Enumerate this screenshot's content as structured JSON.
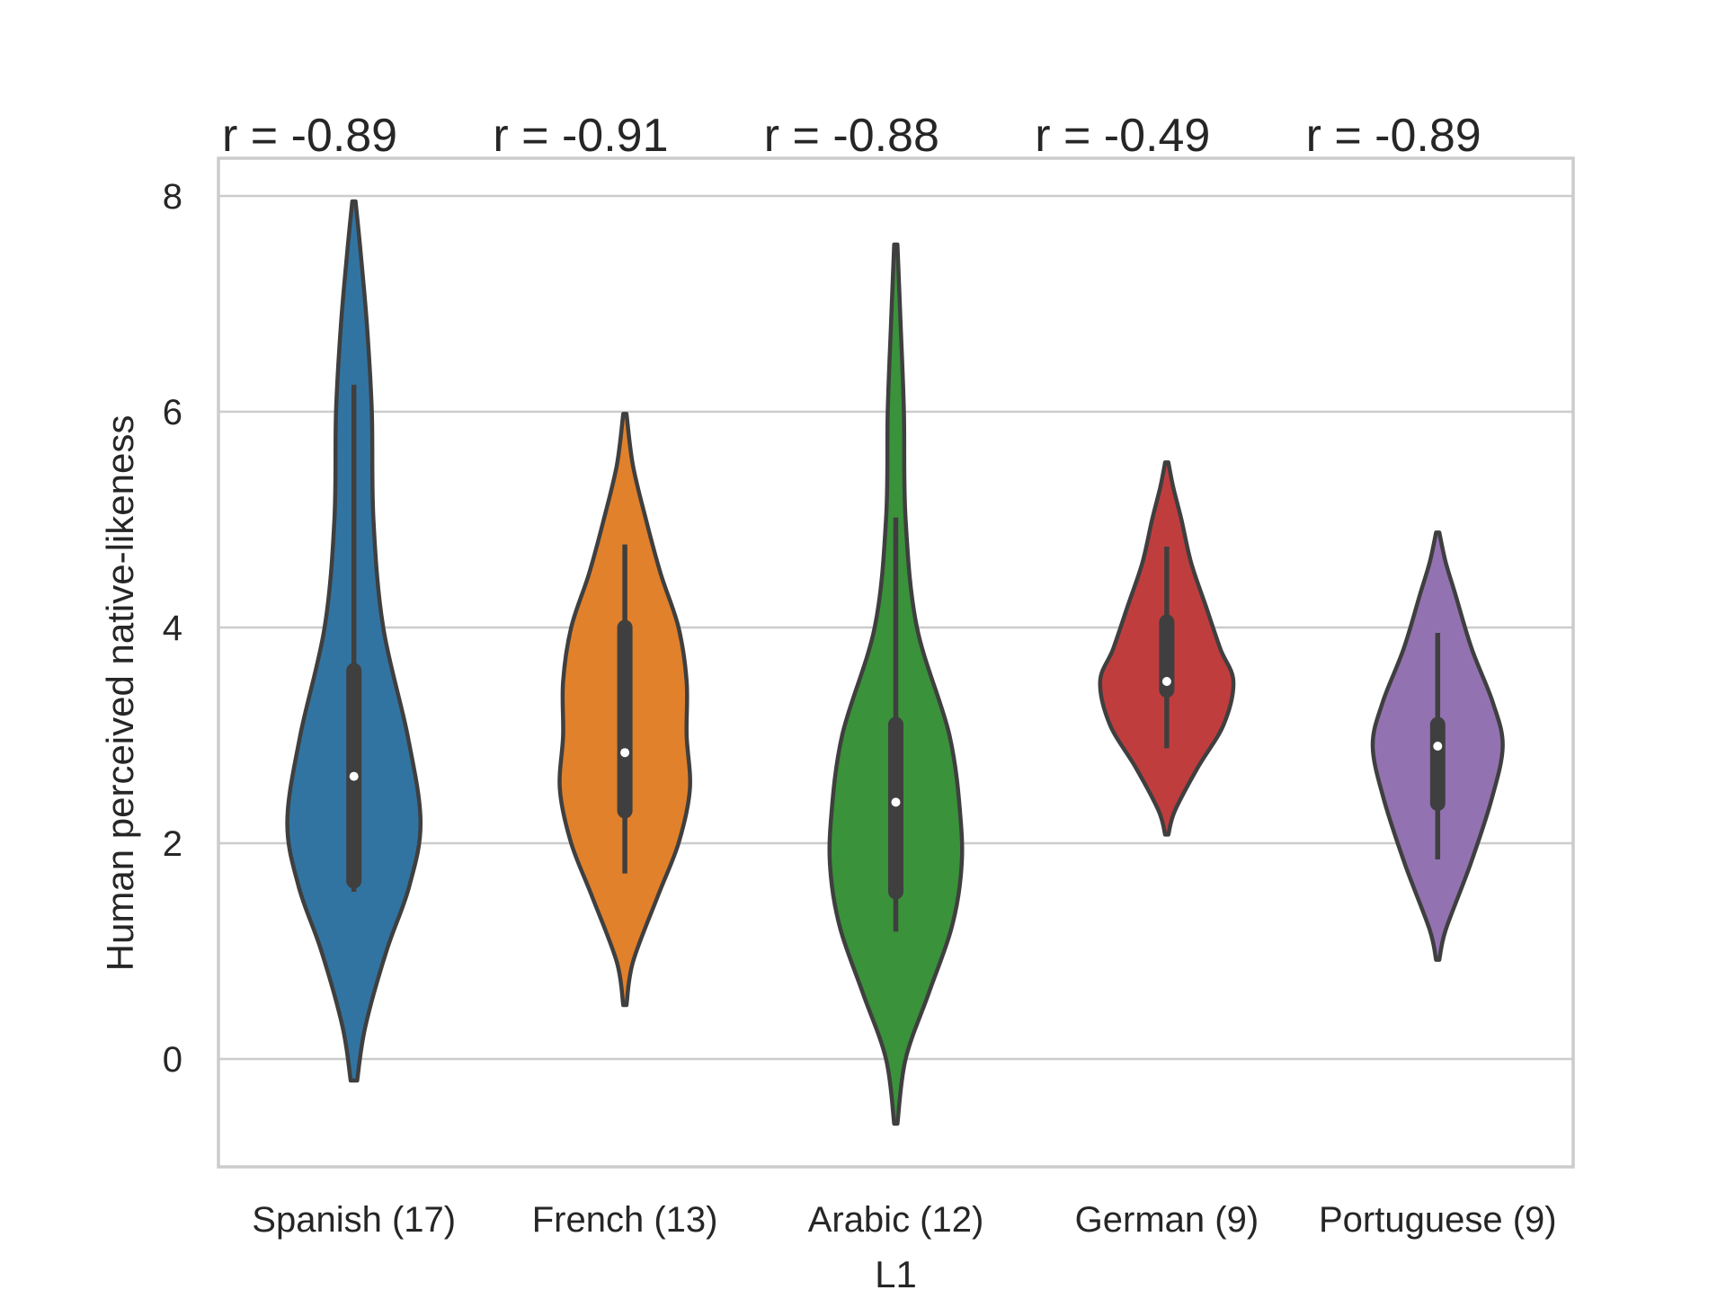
{
  "chart_data": {
    "type": "violin",
    "xlabel": "L1",
    "ylabel": "Human perceived native-likeness",
    "ylim": [
      -1.0,
      8.35
    ],
    "yticks": [
      0,
      2,
      4,
      6,
      8
    ],
    "grid": "horizontal",
    "categories": [
      "Spanish (17)",
      "French (13)",
      "Arabic (12)",
      "German (9)",
      "Portuguese (9)"
    ],
    "annotations": [
      "r = -0.89",
      "r = -0.91",
      "r = -0.88",
      "r = -0.49",
      "r = -0.89"
    ],
    "colors": [
      "#3274a1",
      "#e1812c",
      "#3a923a",
      "#c03d3e",
      "#9372b2"
    ],
    "series": [
      {
        "range": [
          -0.2,
          7.95
        ],
        "median": 2.62,
        "q1": 1.65,
        "q3": 3.6,
        "whisker_low": 1.55,
        "whisker_high": 6.25,
        "profile": [
          [
            -0.2,
            0.02
          ],
          [
            0.3,
            0.07
          ],
          [
            1.0,
            0.2
          ],
          [
            1.6,
            0.34
          ],
          [
            2.2,
            0.41
          ],
          [
            3.0,
            0.33
          ],
          [
            4.0,
            0.18
          ],
          [
            5.0,
            0.12
          ],
          [
            6.0,
            0.11
          ],
          [
            6.8,
            0.08
          ],
          [
            7.5,
            0.04
          ],
          [
            7.95,
            0.01
          ]
        ]
      },
      {
        "range": [
          0.5,
          5.98
        ],
        "median": 2.84,
        "q1": 2.3,
        "q3": 4.0,
        "whisker_low": 1.72,
        "whisker_high": 4.77,
        "profile": [
          [
            0.5,
            0.01
          ],
          [
            0.9,
            0.05
          ],
          [
            1.5,
            0.2
          ],
          [
            2.0,
            0.33
          ],
          [
            2.5,
            0.4
          ],
          [
            3.0,
            0.38
          ],
          [
            3.5,
            0.38
          ],
          [
            4.0,
            0.33
          ],
          [
            4.5,
            0.22
          ],
          [
            5.0,
            0.13
          ],
          [
            5.5,
            0.05
          ],
          [
            5.98,
            0.01
          ]
        ]
      },
      {
        "range": [
          -0.6,
          7.55
        ],
        "median": 2.38,
        "q1": 1.55,
        "q3": 3.1,
        "whisker_low": 1.18,
        "whisker_high": 5.02,
        "profile": [
          [
            -0.6,
            0.01
          ],
          [
            0.0,
            0.06
          ],
          [
            0.6,
            0.2
          ],
          [
            1.2,
            0.34
          ],
          [
            1.7,
            0.4
          ],
          [
            2.2,
            0.4
          ],
          [
            3.0,
            0.33
          ],
          [
            4.0,
            0.13
          ],
          [
            5.0,
            0.06
          ],
          [
            6.0,
            0.05
          ],
          [
            6.8,
            0.03
          ],
          [
            7.55,
            0.01
          ]
        ]
      },
      {
        "range": [
          2.08,
          5.53
        ],
        "median": 3.5,
        "q1": 3.42,
        "q3": 4.05,
        "whisker_low": 2.88,
        "whisker_high": 4.75,
        "profile": [
          [
            2.08,
            0.01
          ],
          [
            2.3,
            0.05
          ],
          [
            2.7,
            0.19
          ],
          [
            3.1,
            0.35
          ],
          [
            3.5,
            0.41
          ],
          [
            3.8,
            0.33
          ],
          [
            4.2,
            0.24
          ],
          [
            4.6,
            0.15
          ],
          [
            5.0,
            0.09
          ],
          [
            5.3,
            0.04
          ],
          [
            5.53,
            0.01
          ]
        ]
      },
      {
        "range": [
          0.92,
          4.88
        ],
        "median": 2.9,
        "q1": 2.37,
        "q3": 3.1,
        "whisker_low": 1.85,
        "whisker_high": 3.95,
        "profile": [
          [
            0.92,
            0.01
          ],
          [
            1.2,
            0.05
          ],
          [
            1.8,
            0.2
          ],
          [
            2.4,
            0.33
          ],
          [
            2.9,
            0.4
          ],
          [
            3.3,
            0.34
          ],
          [
            3.8,
            0.21
          ],
          [
            4.3,
            0.11
          ],
          [
            4.6,
            0.05
          ],
          [
            4.88,
            0.01
          ]
        ]
      }
    ]
  }
}
